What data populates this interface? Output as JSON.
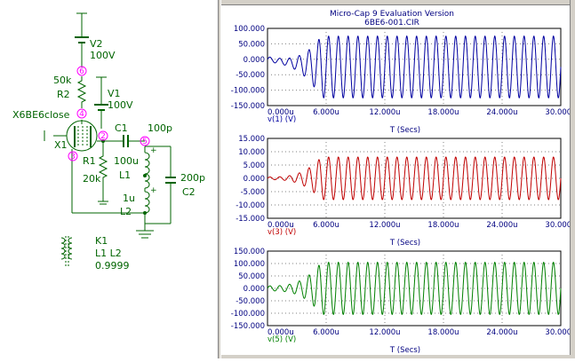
{
  "schematic": {
    "components": {
      "v2_name": "V2",
      "v2_value": "100V",
      "v1_name": "V1",
      "v1_value": "100V",
      "r2_value": "50k",
      "r2_name": "R2",
      "x1_model": "X6BE6close",
      "x1_name": "X1",
      "c1_name": "C1",
      "c1_value": "100p",
      "r1_name": "R1",
      "r1_value": "20k",
      "l1_value": "100u",
      "l1_name": "L1",
      "l2_value": "1u",
      "l2_name": "L2",
      "c2_value": "200p",
      "c2_name": "C2",
      "k1_name": "K1",
      "k1_inductors": "L1 L2",
      "k1_value": "0.9999"
    },
    "nodes": {
      "n6": "6",
      "n4": "4",
      "n2": "2",
      "n5": "5",
      "n3": "3"
    },
    "plus_sign": "+",
    "colors": {
      "wire": "#006400",
      "text": "#006400",
      "node": "#ff00ff"
    }
  },
  "plot_window": {
    "title": "Micro-Cap 9 Evaluation Version",
    "subtitle": "6BE6-001.CIR"
  },
  "chart_data": [
    {
      "type": "line",
      "series": [
        {
          "name": "v(1) (V)",
          "color": "#0000a0"
        }
      ],
      "ylabel_values": [
        "100.000",
        "50.000",
        "0.000",
        "-50.000",
        "-100.000",
        "-150.000"
      ],
      "y_ticks": [
        100,
        50,
        0,
        -50,
        -100,
        -150
      ],
      "ylim": [
        -150,
        100
      ],
      "x_ticks_labels": [
        "0.000u",
        "6.000u",
        "12.000u",
        "18.000u",
        "24.000u",
        "30.000u"
      ],
      "x_ticks": [
        0,
        6,
        12,
        18,
        24,
        30
      ],
      "xlim": [
        0,
        30
      ],
      "xlabel": "T (Secs)",
      "ylabel": "v(1) (V)",
      "signal": {
        "amplitude": 100,
        "offset": -25,
        "start_amp": 8,
        "rise_time_us": 5.5,
        "frequency_mhz": 1.0
      },
      "grid": true
    },
    {
      "type": "line",
      "series": [
        {
          "name": "v(3) (V)",
          "color": "#c00000"
        }
      ],
      "ylabel_values": [
        "15.000",
        "10.000",
        "5.000",
        "0.000",
        "-5.000",
        "-10.000",
        "-15.000"
      ],
      "y_ticks": [
        15,
        10,
        5,
        0,
        -5,
        -10,
        -15
      ],
      "ylim": [
        -15,
        15
      ],
      "x_ticks_labels": [
        "0.000u",
        "6.000u",
        "12.000u",
        "18.000u",
        "24.000u",
        "30.000u"
      ],
      "x_ticks": [
        0,
        6,
        12,
        18,
        24,
        30
      ],
      "xlim": [
        0,
        30
      ],
      "xlabel": "T (Secs)",
      "ylabel": "v(3) (V)",
      "signal": {
        "amplitude": 8,
        "offset": 0,
        "start_amp": 0.5,
        "rise_time_us": 5.5,
        "frequency_mhz": 1.0
      },
      "grid": true
    },
    {
      "type": "line",
      "series": [
        {
          "name": "v(5) (V)",
          "color": "#008000"
        }
      ],
      "ylabel_values": [
        "150.000",
        "100.000",
        "50.000",
        "0.000",
        "-50.000",
        "-100.000",
        "-150.000"
      ],
      "y_ticks": [
        150,
        100,
        50,
        0,
        -50,
        -100,
        -150
      ],
      "ylim": [
        -150,
        150
      ],
      "x_ticks_labels": [
        "0.000u",
        "6.000u",
        "12.000u",
        "18.000u",
        "24.000u",
        "30.000u"
      ],
      "x_ticks": [
        0,
        6,
        12,
        18,
        24,
        30
      ],
      "xlim": [
        0,
        30
      ],
      "xlabel": "T (Secs)",
      "ylabel": "v(5) (V)",
      "signal": {
        "amplitude": 105,
        "offset": 0,
        "start_amp": 10,
        "rise_time_us": 5.5,
        "frequency_mhz": 1.0
      },
      "grid": true
    }
  ]
}
